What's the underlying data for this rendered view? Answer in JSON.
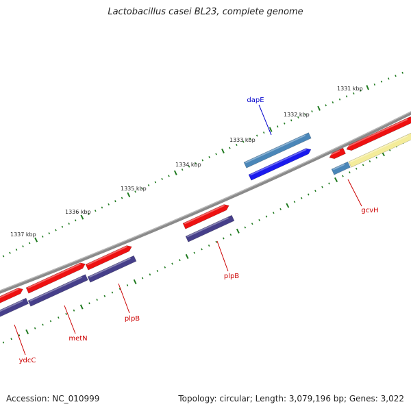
{
  "title": "Lactobacillus casei BL23, complete genome",
  "footer": {
    "accession": "Accession: NC_010999",
    "summary": "Topology: circular; Length: 3,079,196 bp; Genes: 3,022"
  },
  "colors": {
    "backbone": "#7b7b7b",
    "ticks": "#1f7a1f",
    "forward_gene": "#ee1111",
    "reverse_gene": "#463f8a",
    "bright_blue": "#1a1aee",
    "steel_blue": "#4a86b8",
    "pale_yellow": "#f4ec9a",
    "label_red": "#cc0000",
    "label_blue": "#0000cc"
  },
  "kbp_labels": [
    "1331 kbp",
    "1332 kbp",
    "1333 kbp",
    "1334 kbp",
    "1335 kbp",
    "1336 kbp",
    "1337 kbp"
  ],
  "genes": [
    {
      "label": "dapE",
      "color": "label_blue"
    },
    {
      "label": "gcvH",
      "color": "label_red"
    },
    {
      "label": "plpB",
      "color": "label_red"
    },
    {
      "label": "plpB",
      "color": "label_red"
    },
    {
      "label": "metN",
      "color": "label_red"
    },
    {
      "label": "ydcC",
      "color": "label_red"
    }
  ]
}
